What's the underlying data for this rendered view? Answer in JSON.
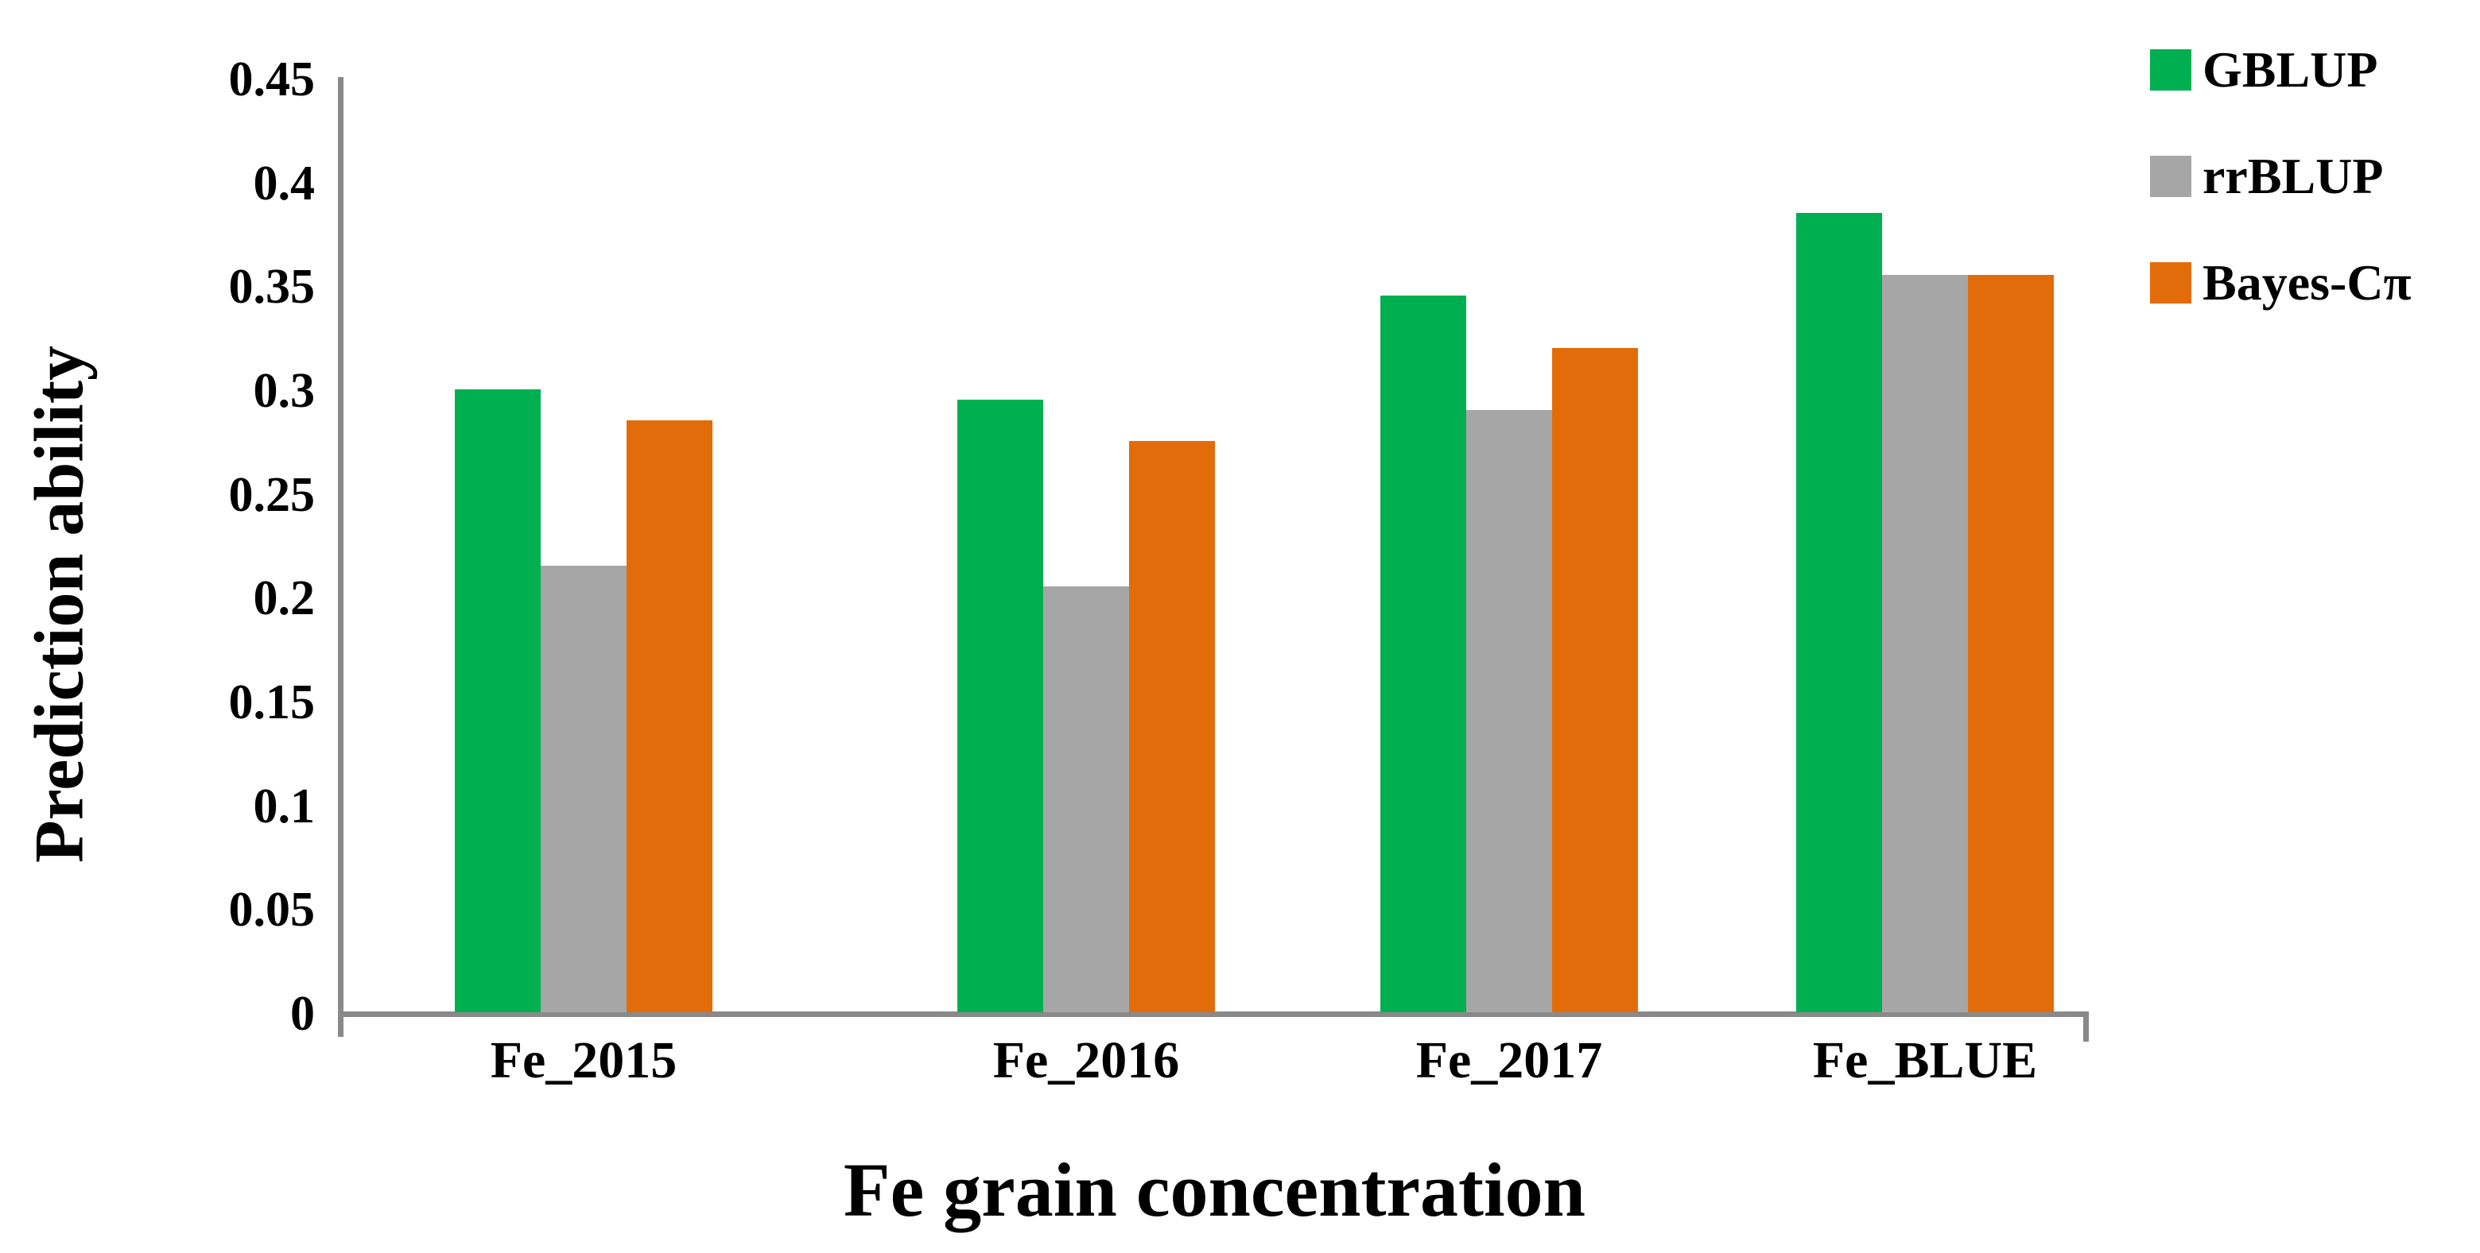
{
  "chart_data": {
    "type": "bar",
    "title": "",
    "xlabel": "Fe grain concentration",
    "ylabel": "Prediction ability",
    "categories": [
      "Fe_2015",
      "Fe_2016",
      "Fe_2017",
      "Fe_BLUE"
    ],
    "series": [
      {
        "name": "GBLUP",
        "color": "#00B050",
        "values": [
          0.3,
          0.295,
          0.345,
          0.385
        ]
      },
      {
        "name": "rrBLUP",
        "color": "#A6A6A6",
        "values": [
          0.215,
          0.205,
          0.29,
          0.355
        ]
      },
      {
        "name": "Bayes-Cπ",
        "color": "#E36C0A",
        "values": [
          0.285,
          0.275,
          0.32,
          0.355
        ]
      }
    ],
    "ylim": [
      0,
      0.45
    ],
    "ytick_step": 0.05,
    "ytick_labels": [
      "0",
      "0.05",
      "0.1",
      "0.15",
      "0.2",
      "0.25",
      "0.3",
      "0.35",
      "0.4",
      "0.45"
    ],
    "grid": false,
    "legend_position": "top-right"
  },
  "colors": {
    "axis": "#898989",
    "text": "#000000",
    "background": "#FFFFFF"
  }
}
